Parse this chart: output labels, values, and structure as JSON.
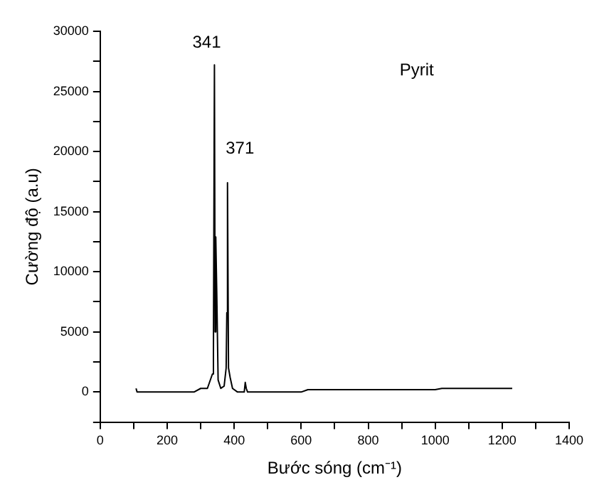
{
  "chart_data": {
    "type": "line",
    "xlabel": "Bước sóng (cm⁻¹)",
    "ylabel": "Cường độ (a.u)",
    "annotations": [
      "341",
      "371",
      "Pyrit"
    ],
    "series": [
      {
        "color": "#000000",
        "x": [
          107,
          110,
          200,
          280,
          300,
          320,
          335,
          338,
          341,
          343,
          345,
          348,
          352,
          360,
          370,
          376,
          378,
          380,
          383,
          388,
          395,
          410,
          430,
          433,
          436,
          440,
          550,
          600,
          620,
          1000,
          1020,
          1230
        ],
        "values": [
          300,
          0,
          0,
          0,
          300,
          300,
          1500,
          3000,
          27200,
          5000,
          12900,
          8200,
          1000,
          300,
          500,
          2000,
          6600,
          17400,
          2000,
          1200,
          300,
          0,
          0,
          800,
          300,
          0,
          0,
          0,
          200,
          200,
          300,
          300
        ]
      }
    ],
    "xlim": [
      0,
      1400
    ],
    "ylim": [
      -2500,
      30000
    ],
    "xticks": [
      0,
      {
        "value": 100,
        "label": null
      },
      200,
      {
        "value": 300,
        "label": null
      },
      400,
      {
        "value": 500,
        "label": null
      },
      600,
      {
        "value": 700,
        "label": null
      },
      800,
      {
        "value": 900,
        "label": null
      },
      1000,
      {
        "value": 1100,
        "label": null
      },
      1200,
      {
        "value": 1300,
        "label": null
      },
      1400
    ],
    "yticks": [
      {
        "value": -2500,
        "label": null
      },
      0,
      {
        "value": 2500,
        "label": null
      },
      5000,
      {
        "value": 7500,
        "label": null
      },
      10000,
      {
        "value": 12500,
        "label": null
      },
      15000,
      {
        "value": 17500,
        "label": null
      },
      20000,
      {
        "value": 22500,
        "label": null
      },
      25000,
      {
        "value": 27500,
        "label": null
      },
      30000
    ],
    "grid": false,
    "legend": false,
    "marker": "none",
    "line_style": "solid"
  }
}
